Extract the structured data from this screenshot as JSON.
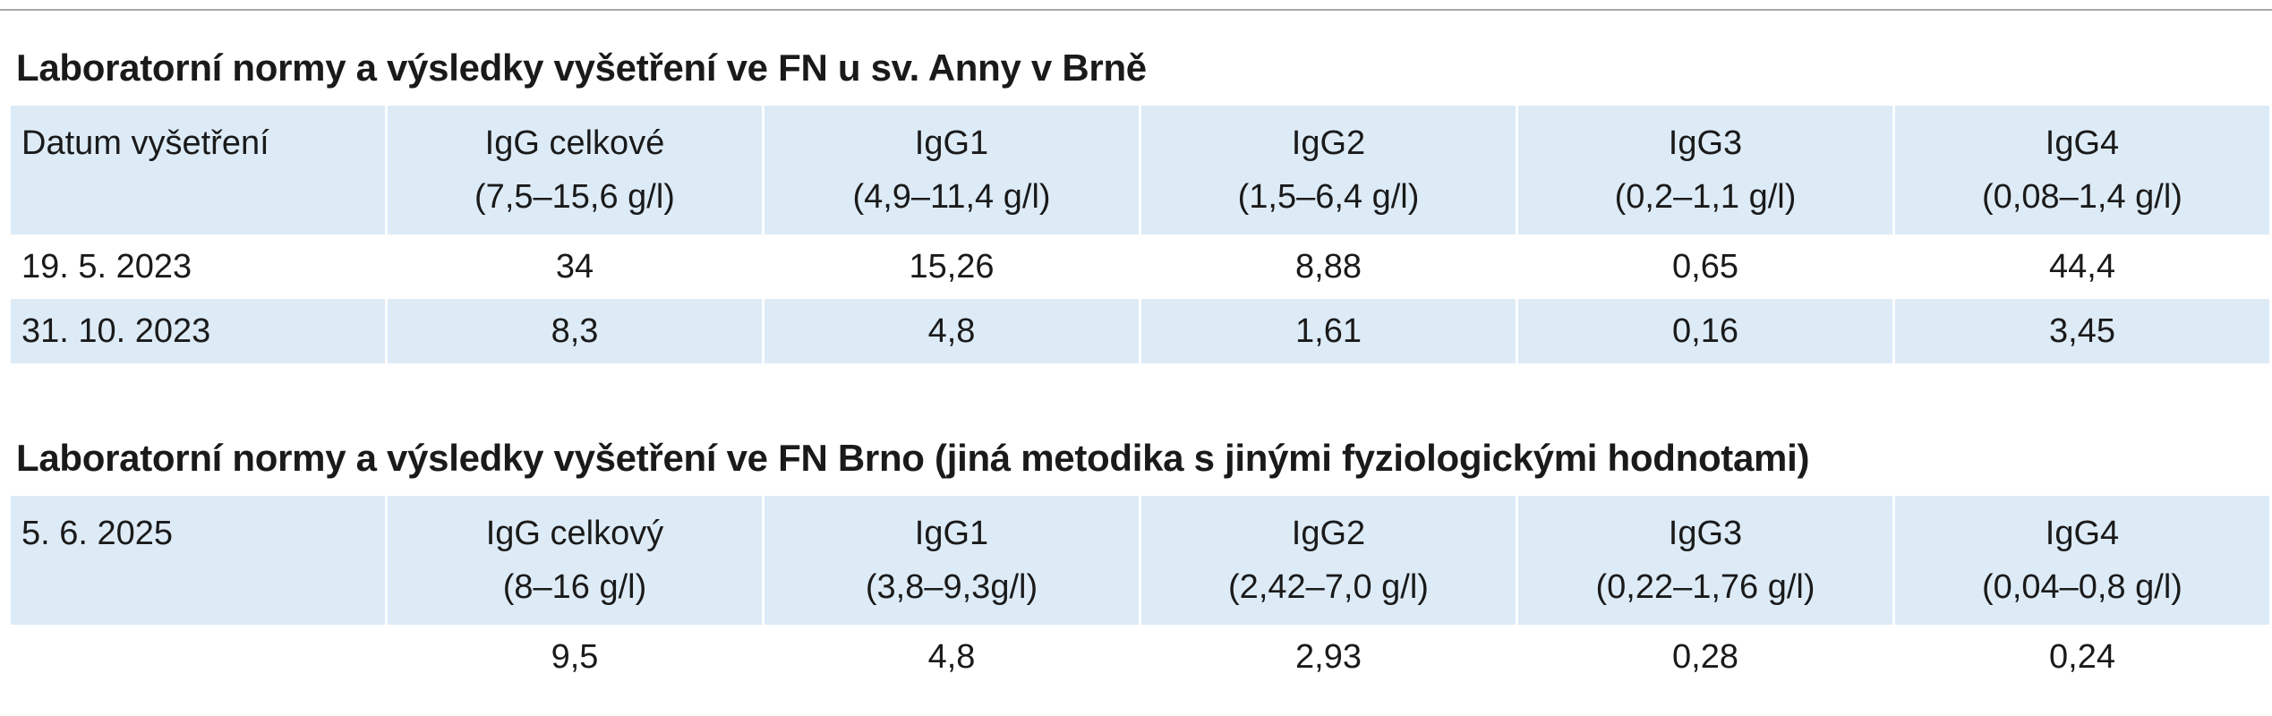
{
  "section1": {
    "title": "Laboratorní normy a výsledky vyšetření ve FN u sv. Anny v Brně",
    "header": [
      {
        "name": "Datum vyšetření",
        "range": ""
      },
      {
        "name": "IgG celkové",
        "range": "(7,5–15,6 g/l)"
      },
      {
        "name": "IgG1",
        "range": "(4,9–11,4 g/l)"
      },
      {
        "name": "IgG2",
        "range": "(1,5–6,4 g/l)"
      },
      {
        "name": "IgG3",
        "range": "(0,2–1,1 g/l)"
      },
      {
        "name": "IgG4",
        "range": "(0,08–1,4 g/l)"
      }
    ],
    "rows": [
      [
        "19. 5. 2023",
        "34",
        "15,26",
        "8,88",
        "0,65",
        "44,4"
      ],
      [
        "31. 10. 2023",
        "8,3",
        "4,8",
        "1,61",
        "0,16",
        "3,45"
      ]
    ]
  },
  "section2": {
    "title": "Laboratorní normy a výsledky vyšetření ve FN Brno (jiná metodika s jinými fyziologickými hodnotami)",
    "header": [
      {
        "name": "5. 6. 2025",
        "range": ""
      },
      {
        "name": "IgG celkový",
        "range": "(8–16 g/l)"
      },
      {
        "name": "IgG1",
        "range": "(3,8–9,3g/l)"
      },
      {
        "name": "IgG2",
        "range": "(2,42–7,0 g/l)"
      },
      {
        "name": "IgG3",
        "range": "(0,22–1,76 g/l)"
      },
      {
        "name": "IgG4",
        "range": "(0,04–0,8 g/l)"
      }
    ],
    "rows": [
      [
        "",
        "9,5",
        "4,8",
        "2,93",
        "0,28",
        "0,24"
      ]
    ]
  }
}
